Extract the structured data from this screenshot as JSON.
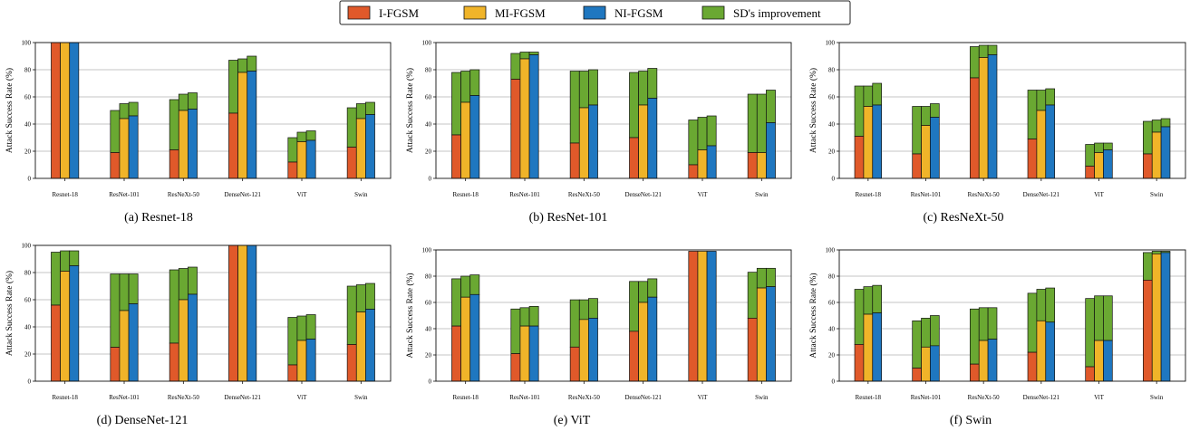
{
  "legend": {
    "entries": [
      {
        "label": "I-FGSM",
        "color": "#e0592a"
      },
      {
        "label": "MI-FGSM",
        "color": "#f0b429"
      },
      {
        "label": "NI-FGSM",
        "color": "#1f77c0"
      },
      {
        "label": "SD's improvement",
        "color": "#6aa832"
      }
    ]
  },
  "colors": {
    "grid": "#b0b0b0",
    "edge": "#111111"
  },
  "chart_data": [
    {
      "type": "bar",
      "title": "(a) Resnet-18",
      "ylabel": "Attack Success Rate (%)",
      "ylim": [
        0,
        100
      ],
      "yticks": [
        0,
        20,
        40,
        60,
        80,
        100
      ],
      "categories": [
        "Resnet-18",
        "ResNet-101",
        "ResNeXt-50",
        "DenseNet-121",
        "ViT",
        "Swin"
      ],
      "base": [
        [
          100,
          100,
          100
        ],
        [
          19,
          44,
          46
        ],
        [
          21,
          50,
          51
        ],
        [
          48,
          78,
          79
        ],
        [
          12,
          27,
          28
        ],
        [
          23,
          44,
          47
        ]
      ],
      "total": [
        [
          100,
          100,
          100
        ],
        [
          50,
          55,
          56
        ],
        [
          58,
          62,
          63
        ],
        [
          87,
          88,
          90
        ],
        [
          30,
          34,
          35
        ],
        [
          52,
          55,
          56
        ]
      ]
    },
    {
      "type": "bar",
      "title": "(b) ResNet-101",
      "ylabel": "Attack Success Rate (%)",
      "ylim": [
        0,
        100
      ],
      "yticks": [
        0,
        20,
        40,
        60,
        80,
        100
      ],
      "categories": [
        "Resnet-18",
        "ResNet-101",
        "ResNeXt-50",
        "DenseNet-121",
        "ViT",
        "Swin"
      ],
      "base": [
        [
          32,
          56,
          61
        ],
        [
          73,
          88,
          91
        ],
        [
          26,
          52,
          54
        ],
        [
          30,
          54,
          59
        ],
        [
          10,
          21,
          24
        ],
        [
          19,
          19,
          41
        ]
      ],
      "total": [
        [
          78,
          79,
          80
        ],
        [
          92,
          93,
          93
        ],
        [
          79,
          79,
          80
        ],
        [
          78,
          79,
          81
        ],
        [
          43,
          45,
          46
        ],
        [
          62,
          62,
          65
        ]
      ]
    },
    {
      "type": "bar",
      "title": "(c) ResNeXt-50",
      "ylabel": "Attack Success Rate (%)",
      "ylim": [
        0,
        100
      ],
      "yticks": [
        0,
        20,
        40,
        60,
        80,
        100
      ],
      "categories": [
        "Resnet-18",
        "ResNet-101",
        "ResNeXt-50",
        "DenseNet-121",
        "ViT",
        "Swin"
      ],
      "base": [
        [
          31,
          53,
          54
        ],
        [
          18,
          39,
          45
        ],
        [
          74,
          89,
          91
        ],
        [
          29,
          50,
          54
        ],
        [
          9,
          19,
          21
        ],
        [
          18,
          34,
          38
        ]
      ],
      "total": [
        [
          68,
          68,
          70
        ],
        [
          53,
          53,
          55
        ],
        [
          97,
          98,
          98
        ],
        [
          65,
          65,
          66
        ],
        [
          25,
          26,
          26
        ],
        [
          42,
          43,
          44
        ]
      ]
    },
    {
      "type": "bar",
      "title": "(d) DenseNet-121",
      "ylabel": "Attack Success Rate (%)",
      "ylim": [
        0,
        100
      ],
      "yticks": [
        0,
        20,
        40,
        60,
        80,
        100
      ],
      "categories": [
        "Resnet-18",
        "ResNet-101",
        "ResNeXt-50",
        "DenseNet-121",
        "ViT",
        "Swin"
      ],
      "base": [
        [
          56,
          81,
          85
        ],
        [
          25,
          52,
          57
        ],
        [
          28,
          60,
          64
        ],
        [
          100,
          100,
          100
        ],
        [
          12,
          30,
          31
        ],
        [
          27,
          51,
          53
        ]
      ],
      "total": [
        [
          95,
          96,
          96
        ],
        [
          79,
          79,
          79
        ],
        [
          82,
          83,
          84
        ],
        [
          100,
          100,
          100
        ],
        [
          47,
          48,
          49
        ],
        [
          70,
          71,
          72
        ]
      ]
    },
    {
      "type": "bar",
      "title": "(e) ViT",
      "ylabel": "Attack Success Rate (%)",
      "ylim": [
        0,
        100
      ],
      "yticks": [
        0,
        20,
        40,
        60,
        80,
        100
      ],
      "categories": [
        "Resnet-18",
        "ResNet-101",
        "ResNeXt-50",
        "DenseNet-121",
        "ViT",
        "Swin"
      ],
      "base": [
        [
          42,
          64,
          66
        ],
        [
          21,
          42,
          42
        ],
        [
          26,
          47,
          48
        ],
        [
          38,
          60,
          64
        ],
        [
          99,
          99,
          99
        ],
        [
          48,
          71,
          72
        ]
      ],
      "total": [
        [
          78,
          80,
          81
        ],
        [
          55,
          56,
          57
        ],
        [
          62,
          62,
          63
        ],
        [
          76,
          76,
          78
        ],
        [
          99,
          99,
          99
        ],
        [
          83,
          86,
          86
        ]
      ]
    },
    {
      "type": "bar",
      "title": "(f) Swin",
      "ylabel": "Attack Success Rate (%)",
      "ylim": [
        0,
        100
      ],
      "yticks": [
        0,
        20,
        40,
        60,
        80,
        100
      ],
      "categories": [
        "Resnet-18",
        "ResNet-101",
        "ResNeXt-50",
        "DenseNet-121",
        "ViT",
        "Swin"
      ],
      "base": [
        [
          28,
          51,
          52
        ],
        [
          10,
          26,
          27
        ],
        [
          13,
          31,
          32
        ],
        [
          22,
          46,
          45
        ],
        [
          11,
          31,
          31
        ],
        [
          77,
          97,
          98
        ]
      ],
      "total": [
        [
          70,
          72,
          73
        ],
        [
          46,
          48,
          50
        ],
        [
          55,
          56,
          56
        ],
        [
          67,
          70,
          71
        ],
        [
          63,
          65,
          65
        ],
        [
          98,
          99,
          99
        ]
      ]
    }
  ]
}
